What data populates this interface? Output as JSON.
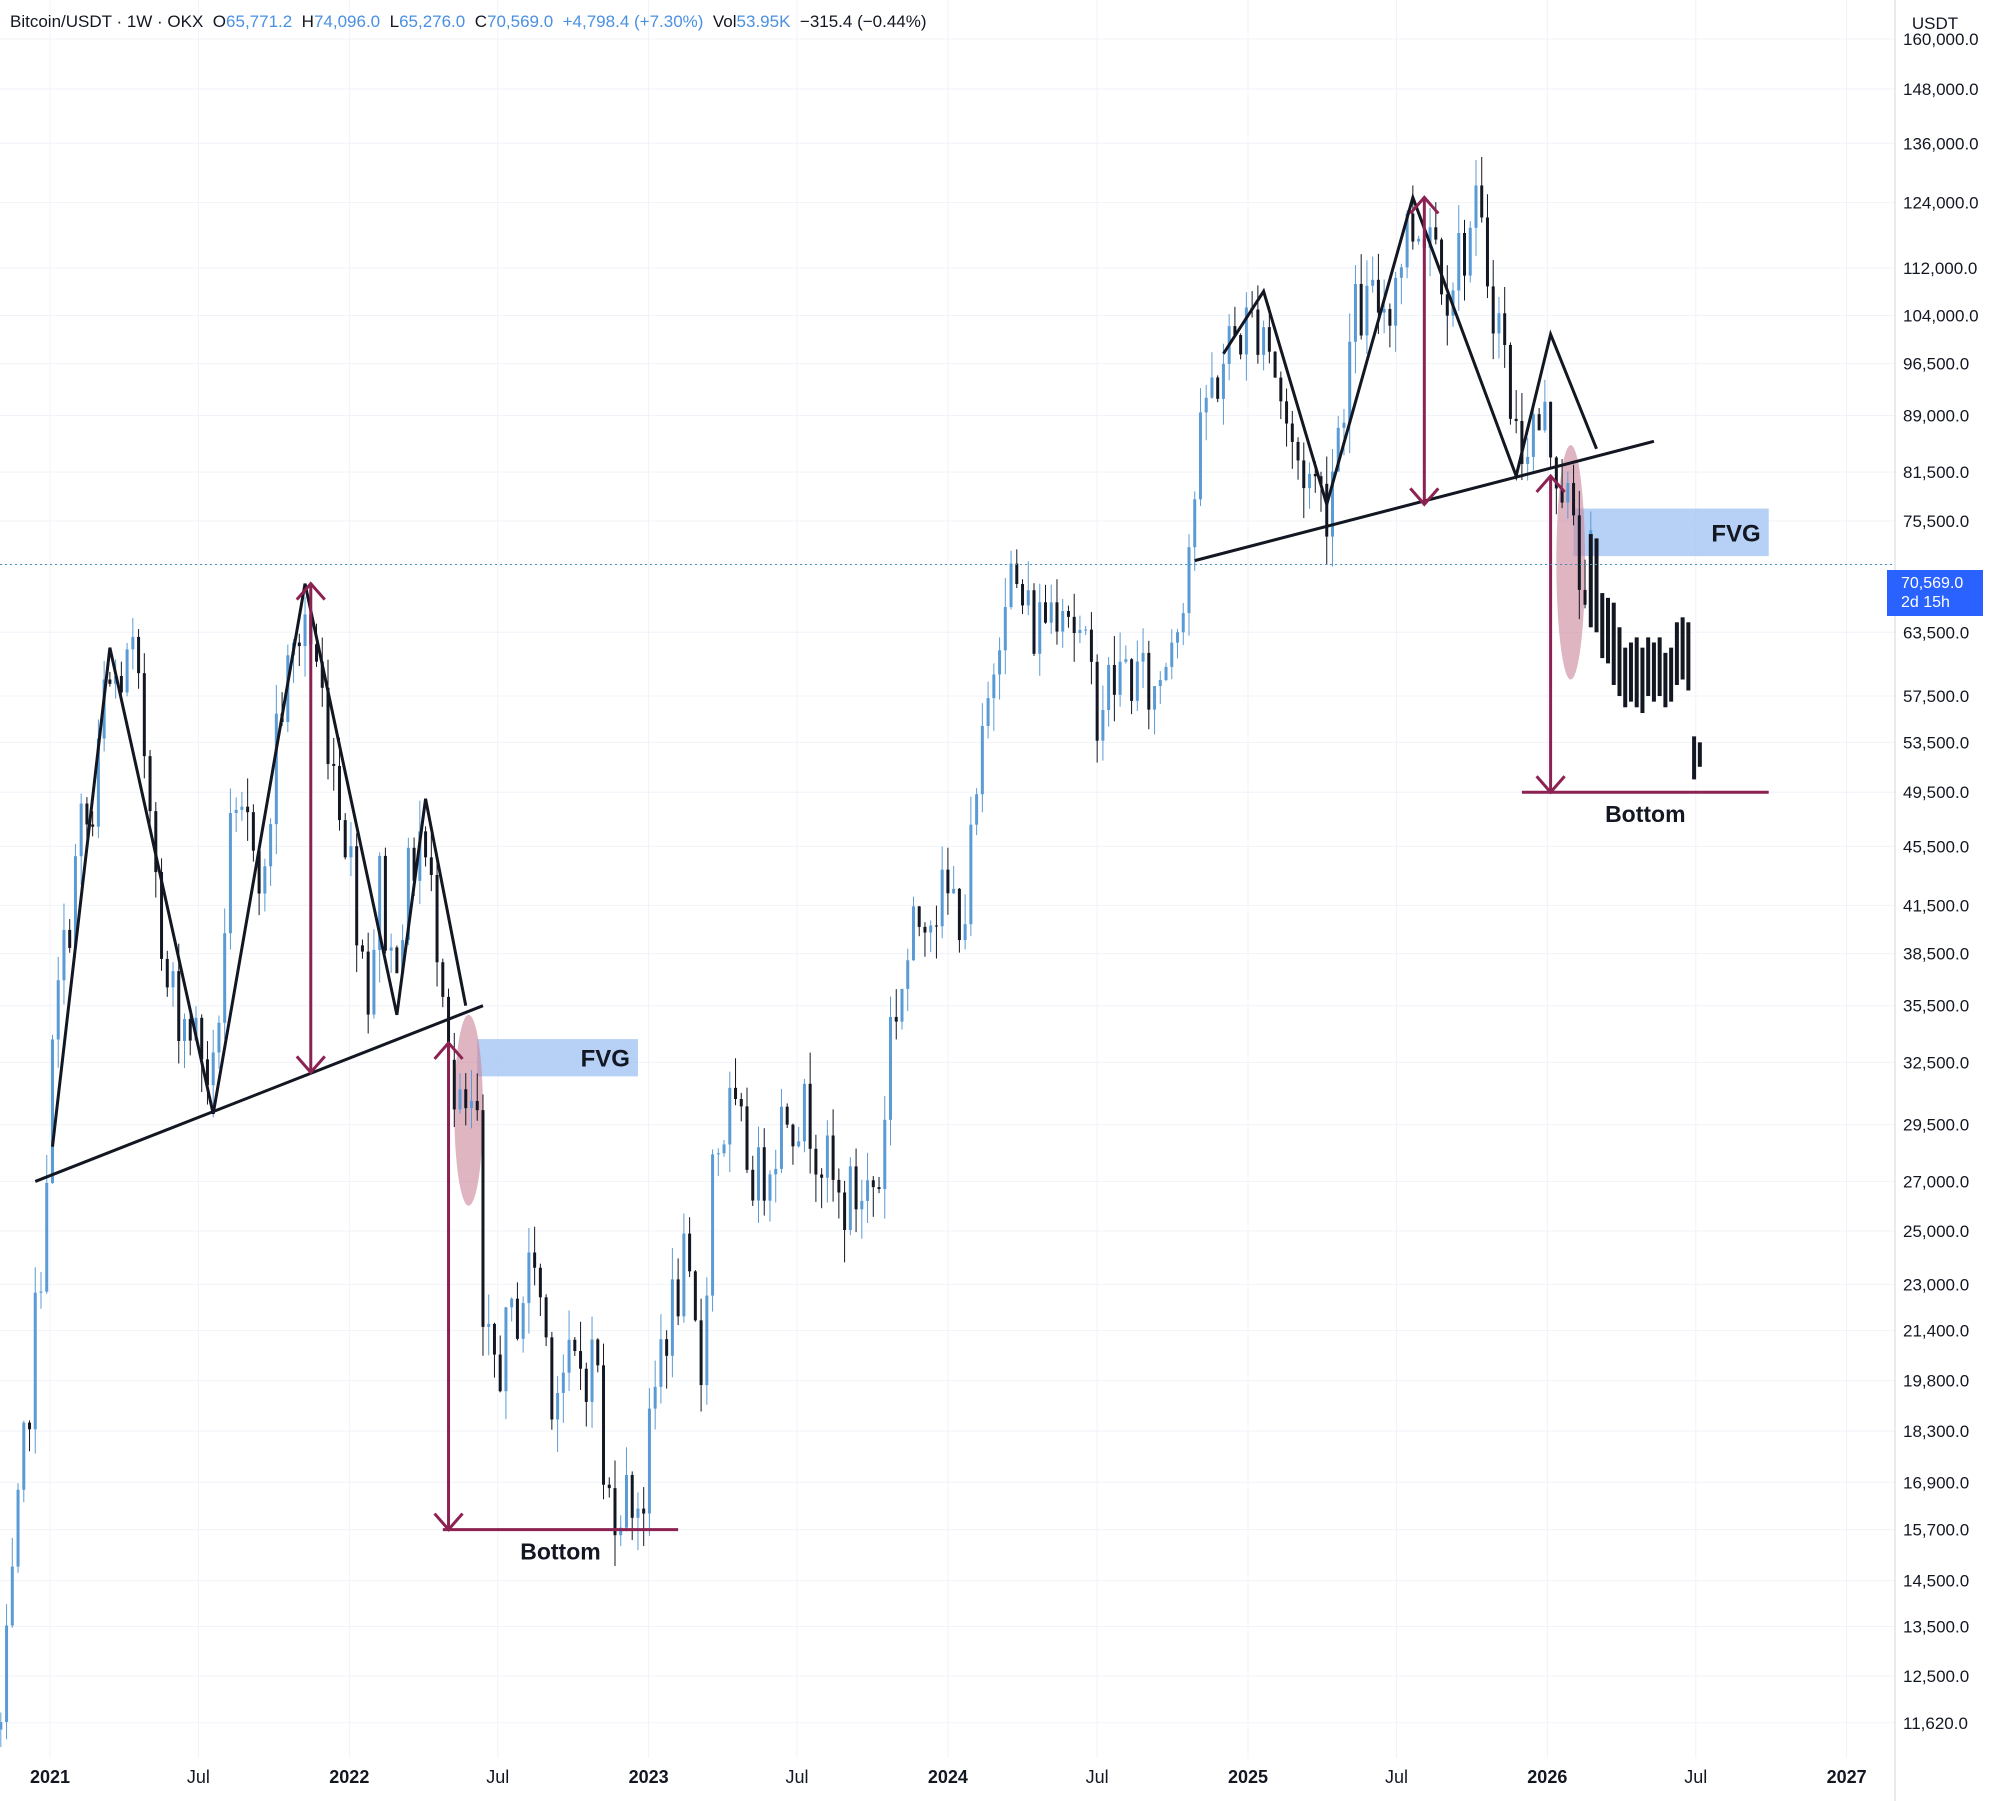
{
  "header": {
    "symbol": "Bitcoin/USDT · 1W · OKX",
    "open_label": "O",
    "open_value": "65,771.2",
    "high_label": "H",
    "high_value": "74,096.0",
    "low_label": "L",
    "low_value": "65,276.0",
    "close_label": "C",
    "close_value": "70,569.0",
    "change": "+4,798.4 (+7.30%)",
    "vol_label": "Vol",
    "vol_value": "53.95K",
    "vol_change": "−315.4 (−0.44%)"
  },
  "axis": {
    "currency": "USDT",
    "last_price": "70,569.0",
    "countdown": "2d 15h"
  },
  "colors": {
    "up": "#5b9bd5",
    "down": "#131722",
    "projection": "#131722",
    "pattern_line": "#131722",
    "measure_arrow": "#8b2252",
    "fvg_fill": "#a9c8f5",
    "ellipse_fill": "#c9849a",
    "price_badge": "#2962ff",
    "grid": "#f0f3fa"
  },
  "chart_data": {
    "type": "candlestick",
    "symbol": "BTCUSDT",
    "interval": "1W",
    "y_scale": "log",
    "ylim": [
      11000,
      170000
    ],
    "x_range": [
      "2020-11-01",
      "2027-03-01"
    ],
    "grid": true,
    "y_ticks": [
      11620,
      12500,
      13500,
      14500,
      15700,
      16900,
      18300,
      19800,
      21400,
      23000,
      25000,
      27000,
      29500,
      32500,
      35500,
      38500,
      41500,
      45500,
      49500,
      53500,
      57500,
      63500,
      70569,
      75500,
      81500,
      89000,
      96500,
      104000,
      112000,
      124000,
      136000,
      148000,
      160000
    ],
    "y_tick_labels": [
      "11,620.0",
      "12,500.0",
      "13,500.0",
      "14,500.0",
      "15,700.0",
      "16,900.0",
      "18,300.0",
      "19,800.0",
      "21,400.0",
      "23,000.0",
      "25,000.0",
      "27,000.0",
      "29,500.0",
      "32,500.0",
      "35,500.0",
      "38,500.0",
      "41,500.0",
      "45,500.0",
      "49,500.0",
      "53,500.0",
      "57,500.0",
      "63,500.0",
      "",
      "75,500.0",
      "81,500.0",
      "89,000.0",
      "96,500.0",
      "104,000.0",
      "112,000.0",
      "124,000.0",
      "136,000.0",
      "148,000.0",
      "160,000.0"
    ],
    "x_ticks": [
      {
        "date": "2021-01-01",
        "label": "2021",
        "year": true
      },
      {
        "date": "2021-07-01",
        "label": "Jul",
        "year": false
      },
      {
        "date": "2022-01-01",
        "label": "2022",
        "year": true
      },
      {
        "date": "2022-07-01",
        "label": "Jul",
        "year": false
      },
      {
        "date": "2023-01-01",
        "label": "2023",
        "year": true
      },
      {
        "date": "2023-07-01",
        "label": "Jul",
        "year": false
      },
      {
        "date": "2024-01-01",
        "label": "2024",
        "year": true
      },
      {
        "date": "2024-07-01",
        "label": "Jul",
        "year": false
      },
      {
        "date": "2025-01-01",
        "label": "2025",
        "year": true
      },
      {
        "date": "2025-07-01",
        "label": "Jul",
        "year": false
      },
      {
        "date": "2026-01-01",
        "label": "2026",
        "year": true
      },
      {
        "date": "2026-07-01",
        "label": "Jul",
        "year": false
      },
      {
        "date": "2027-01-01",
        "label": "2027",
        "year": true
      }
    ],
    "price_anchors": [
      [
        "2020-11-02",
        11500
      ],
      [
        "2020-12-21",
        24000
      ],
      [
        "2021-01-04",
        32500
      ],
      [
        "2021-01-11",
        36000
      ],
      [
        "2021-02-08",
        47000
      ],
      [
        "2021-02-22",
        46500
      ],
      [
        "2021-03-08",
        57500
      ],
      [
        "2021-04-12",
        60500
      ],
      [
        "2021-05-10",
        46500
      ],
      [
        "2021-05-17",
        37000
      ],
      [
        "2021-06-21",
        34500
      ],
      [
        "2021-07-19",
        31500
      ],
      [
        "2021-08-09",
        45500
      ],
      [
        "2021-09-06",
        47000
      ],
      [
        "2021-09-20",
        42500
      ],
      [
        "2021-10-04",
        55000
      ],
      [
        "2021-11-08",
        65500
      ],
      [
        "2021-11-29",
        57500
      ],
      [
        "2021-12-27",
        47000
      ],
      [
        "2022-01-24",
        36500
      ],
      [
        "2022-02-07",
        43000
      ],
      [
        "2022-02-21",
        38000
      ],
      [
        "2022-03-28",
        46500
      ],
      [
        "2022-04-25",
        38000
      ],
      [
        "2022-05-09",
        30000
      ],
      [
        "2022-06-06",
        29500
      ],
      [
        "2022-06-13",
        20500
      ],
      [
        "2022-07-04",
        20500
      ],
      [
        "2022-08-15",
        24000
      ],
      [
        "2022-09-05",
        19800
      ],
      [
        "2022-10-31",
        20500
      ],
      [
        "2022-11-07",
        16500
      ],
      [
        "2022-12-26",
        16600
      ],
      [
        "2023-01-16",
        21000
      ],
      [
        "2023-02-13",
        23500
      ],
      [
        "2023-03-06",
        20000
      ],
      [
        "2023-03-20",
        28000
      ],
      [
        "2023-04-10",
        30000
      ],
      [
        "2023-05-15",
        27000
      ],
      [
        "2023-06-19",
        30500
      ],
      [
        "2023-07-17",
        29800
      ],
      [
        "2023-08-21",
        26000
      ],
      [
        "2023-10-09",
        27000
      ],
      [
        "2023-10-23",
        34500
      ],
      [
        "2023-12-04",
        42000
      ],
      [
        "2024-01-22",
        41500
      ],
      [
        "2024-02-26",
        61000
      ],
      [
        "2024-03-11",
        70000
      ],
      [
        "2024-04-15",
        64000
      ],
      [
        "2024-05-20",
        68500
      ],
      [
        "2024-07-01",
        57000
      ],
      [
        "2024-08-05",
        60000
      ],
      [
        "2024-09-09",
        57500
      ],
      [
        "2024-10-14",
        68500
      ],
      [
        "2024-11-11",
        91000
      ],
      [
        "2024-12-16",
        101000
      ],
      [
        "2025-01-20",
        104000
      ],
      [
        "2025-02-24",
        84000
      ],
      [
        "2025-04-07",
        78000
      ],
      [
        "2025-05-12",
        104000
      ],
      [
        "2025-06-23",
        107000
      ],
      [
        "2025-07-14",
        119000
      ],
      [
        "2025-08-11",
        121000
      ],
      [
        "2025-09-01",
        110000
      ],
      [
        "2025-10-06",
        121000
      ],
      [
        "2025-11-03",
        103000
      ],
      [
        "2025-11-24",
        86000
      ],
      [
        "2025-12-29",
        88000
      ],
      [
        "2026-01-26",
        78000
      ],
      [
        "2026-02-09",
        69000
      ],
      [
        "2026-02-23",
        70569
      ]
    ],
    "projection_bars": [
      [
        "2026-02-23",
        74000,
        64000
      ],
      [
        "2026-03-02",
        73500,
        63500
      ],
      [
        "2026-03-09",
        67500,
        61000
      ],
      [
        "2026-03-16",
        67000,
        60500
      ],
      [
        "2026-03-23",
        66500,
        58500
      ],
      [
        "2026-03-30",
        64000,
        57500
      ],
      [
        "2026-04-06",
        62000,
        56500
      ],
      [
        "2026-04-13",
        62500,
        57000
      ],
      [
        "2026-04-20",
        63000,
        56500
      ],
      [
        "2026-04-27",
        62000,
        56000
      ],
      [
        "2026-05-04",
        63000,
        57500
      ],
      [
        "2026-05-11",
        62500,
        57000
      ],
      [
        "2026-05-18",
        63000,
        57500
      ],
      [
        "2026-05-25",
        61500,
        56500
      ],
      [
        "2026-06-01",
        62000,
        57000
      ],
      [
        "2026-06-08",
        64500,
        58500
      ],
      [
        "2026-06-15",
        65000,
        59000
      ],
      [
        "2026-06-22",
        64500,
        58000
      ],
      [
        "2026-06-29",
        54000,
        50500
      ],
      [
        "2026-07-06",
        53500,
        51500
      ]
    ],
    "annotations": {
      "patterns": [
        {
          "points": [
            [
              "2021-01-04",
              28500
            ],
            [
              "2021-03-15",
              62000
            ],
            [
              "2021-07-19",
              30000
            ],
            [
              "2021-11-08",
              68500
            ],
            [
              "2022-02-28",
              35000
            ],
            [
              "2022-04-04",
              49000
            ],
            [
              "2022-05-23",
              35500
            ]
          ]
        },
        {
          "points": [
            [
              "2024-12-02",
              98000
            ],
            [
              "2025-01-20",
              108000
            ],
            [
              "2025-04-07",
              77500
            ],
            [
              "2025-07-21",
              125000
            ],
            [
              "2025-11-24",
              81000
            ],
            [
              "2026-01-05",
              101000
            ],
            [
              "2026-03-02",
              84500
            ]
          ]
        }
      ],
      "necklines": [
        {
          "from": [
            "2020-12-14",
            27000
          ],
          "to": [
            "2022-06-13",
            35500
          ]
        },
        {
          "from": [
            "2024-10-28",
            71000
          ],
          "to": [
            "2026-05-11",
            85500
          ]
        }
      ],
      "measure_arrows": [
        {
          "date": "2021-11-15",
          "from": 68500,
          "to": 32000
        },
        {
          "date": "2022-05-02",
          "from": 33500,
          "to": 15700
        },
        {
          "date": "2025-08-04",
          "from": 125000,
          "to": 77500
        },
        {
          "date": "2026-01-05",
          "from": 81000,
          "to": 49500
        }
      ],
      "fvg_zones": [
        {
          "label": "FVG",
          "from": "2022-06-06",
          "to": "2022-12-19",
          "high": 33700,
          "low": 31800
        },
        {
          "label": "FVG",
          "from": "2026-02-02",
          "to": "2026-09-28",
          "high": 77000,
          "low": 71500
        }
      ],
      "ellipses": [
        {
          "from": "2022-05-09",
          "to": "2022-06-13",
          "high": 35000,
          "low": 26000
        },
        {
          "from": "2026-01-12",
          "to": "2026-02-16",
          "high": 85000,
          "low": 59000
        }
      ],
      "bottom_lines": [
        {
          "label": "Bottom",
          "from": "2022-04-25",
          "to": "2023-02-06",
          "value": 15700
        },
        {
          "label": "Bottom",
          "from": "2025-12-01",
          "to": "2026-09-28",
          "value": 49500
        }
      ]
    }
  }
}
